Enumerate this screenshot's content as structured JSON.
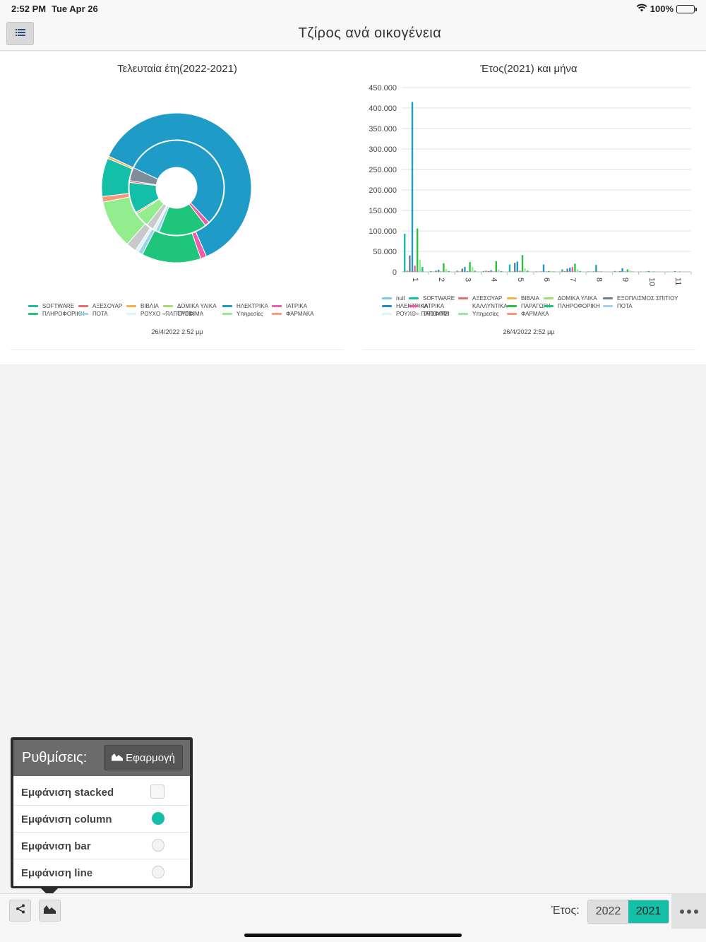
{
  "status": {
    "time": "2:52 PM",
    "date": "Tue Apr 26",
    "battery": "100%"
  },
  "nav": {
    "title": "Τζίρος ανά οικογένεια",
    "menu_icon": "list-icon"
  },
  "left_panel": {
    "title": "Τελευταία έτη(2022-2021)",
    "timestamp": "26/4/2022 2:52 μμ",
    "legend": [
      {
        "label": "SOFTWARE",
        "color": "#13bfa6"
      },
      {
        "label": "ΑΞΕΣΟΥΑΡ",
        "color": "#f06a6a"
      },
      {
        "label": "ΒΙΒΛΙΑ",
        "color": "#f7b04c"
      },
      {
        "label": "ΔΟΜΙΚΑ ΥΛΙΚΑ",
        "color": "#a5dc6e"
      },
      {
        "label": "ΗΛΕΚΤΡΙΚΑ",
        "color": "#1f9bc7"
      },
      {
        "label": "ΙΑΤΡΙΚΑ",
        "color": "#ef5da8"
      },
      {
        "label": "ΠΛΗΡΟΦΟΡΙΚΗ",
        "color": "#1ec57a"
      },
      {
        "label": "ΠΟΤΑ",
        "color": "#9fd3ea"
      },
      {
        "label": "ΡΟΥΧΟ - ΠΑΠΟΥΤΣΙ",
        "color": "#d9f5f3"
      },
      {
        "label": "ΤΡΟΦΙΜΑ",
        "color": "#c9c9c9"
      },
      {
        "label": "Υπηρεσίες",
        "color": "#93ec8e"
      },
      {
        "label": "ΦΑΡΜΑΚΑ",
        "color": "#f59a78"
      }
    ]
  },
  "right_panel": {
    "title": "Έτος(2021) και μήνα",
    "timestamp": "26/4/2022 2:52 μμ",
    "legend": [
      {
        "label": "null",
        "color": "#7cc9ee"
      },
      {
        "label": "SOFTWARE",
        "color": "#13bfa6"
      },
      {
        "label": "ΑΞΕΣΟΥΑΡ",
        "color": "#f06a6a"
      },
      {
        "label": "ΒΙΒΛΙΑ",
        "color": "#f7b04c"
      },
      {
        "label": "ΔΟΜΙΚΑ ΥΛΙΚΑ",
        "color": "#a5dc6e"
      },
      {
        "label": "ΕΞΟΠΛΙΣΜΟΣ ΣΠΙΤΙΟΥ",
        "color": "#6a7f96"
      },
      {
        "label": "ΗΛΕΚΤΡΙΚΑ",
        "color": "#1f8fc0"
      },
      {
        "label": "ΙΑΤΡΙΚΑ",
        "color": "#ef5da8"
      },
      {
        "label": "ΚΑΛΛΥΝΤΙΚΑ",
        "color": "#ffffff"
      },
      {
        "label": "ΠΑΡΑΓΩΓΗ",
        "color": "#2fbf3f"
      },
      {
        "label": "ΠΛΗΡΟΦΟΡΙΚΗ",
        "color": "#1ec57a"
      },
      {
        "label": "ΠΟΤΑ",
        "color": "#9fd3ea"
      },
      {
        "label": "ΡΟΥΧΟ - ΠΑΠΟΥΤΣΙ",
        "color": "#d9f5f3"
      },
      {
        "label": "ΤΡΟΦΙΜΑ",
        "color": "#c9c9c9"
      },
      {
        "label": "Υπηρεσίες",
        "color": "#93ec8e"
      },
      {
        "label": "ΦΑΡΜΑΚΑ",
        "color": "#f59a78"
      }
    ]
  },
  "chart_data": [
    {
      "type": "pie",
      "title": "Τελευταία έτη(2022-2021)",
      "note_rings": [
        "outer",
        "inner"
      ],
      "rings": [
        {
          "name": "outer",
          "slices": [
            {
              "label": "ΗΛΕΚΤΡΙΚΑ",
              "value": 61.5
            },
            {
              "label": "ΙΑΤΡΙΚΑ",
              "value": 1.3
            },
            {
              "label": "ΠΛΗΡΟΦΟΡΙΚΗ",
              "value": 12.8
            },
            {
              "label": "ΠΟΤΑ",
              "value": 1.0
            },
            {
              "label": "ΡΟΥΧΟ - ΠΑΠΟΥΤΣΙ",
              "value": 0.7
            },
            {
              "label": "ΤΡΟΦΙΜΑ",
              "value": 2.2
            },
            {
              "label": "Υπηρεσίες",
              "value": 10.5
            },
            {
              "label": "ΦΑΡΜΑΚΑ",
              "value": 1.2
            },
            {
              "label": "SOFTWARE",
              "value": 8.3
            },
            {
              "label": "ΒΙΒΛΙΑ",
              "value": 0.5
            }
          ]
        },
        {
          "name": "inner",
          "slices": [
            {
              "label": "ΗΛΕΚΤΡΙΚΑ",
              "value": 56.0
            },
            {
              "label": "ΙΑΤΡΙΚΑ",
              "value": 1.6
            },
            {
              "label": "ΠΛΗΡΟΦΟΡΙΚΗ",
              "value": 16.5
            },
            {
              "label": "ΠΟΤΑ",
              "value": 1.2
            },
            {
              "label": "ΡΟΥΧΟ - ΠΑΠΟΥΤΣΙ",
              "value": 1.0
            },
            {
              "label": "ΤΡΟΦΙΜΑ",
              "value": 2.5
            },
            {
              "label": "Υπηρεσίες",
              "value": 5.0
            },
            {
              "label": "ΦΑΡΜΑΚΑ",
              "value": 0.6
            },
            {
              "label": "SOFTWARE",
              "value": 10.5
            },
            {
              "label": "ΑΞΕΣΟΥΑΡ",
              "value": 0.6
            },
            {
              "label": "ΕΞΟΠΛΙΣΜΟΣ ΣΠΙΤΙΟΥ",
              "value": 4.5
            }
          ]
        }
      ]
    },
    {
      "type": "bar",
      "title": "Έτος(2021) και μήνα",
      "categories": [
        "1",
        "2",
        "3",
        "4",
        "5",
        "6",
        "7",
        "8",
        "9",
        "10",
        "11"
      ],
      "yticks": [
        "0",
        "50.000",
        "100.000",
        "150.000",
        "200.000",
        "250.000",
        "300.000",
        "350.000",
        "400.000",
        "450.000"
      ],
      "ylim": [
        0,
        450000
      ],
      "grid": true,
      "legend_position": "bottom",
      "series": [
        {
          "name": "SOFTWARE",
          "values": [
            93000,
            2000,
            3000,
            2000,
            18000,
            1000,
            6000,
            1000,
            2000,
            500,
            500
          ]
        },
        {
          "name": "ΑΞΕΣΟΥΑΡ",
          "values": [
            3000,
            500,
            1000,
            3000,
            1000,
            500,
            2000,
            500,
            500,
            0,
            0
          ]
        },
        {
          "name": "ΕΞΟΠΛΙΣΜΟΣ ΣΠΙΤΙΟΥ",
          "values": [
            40000,
            3000,
            8000,
            2000,
            22000,
            1000,
            8000,
            1000,
            2000,
            500,
            0
          ]
        },
        {
          "name": "ΗΛΕΚΤΡΙΚΑ",
          "values": [
            415000,
            5000,
            12000,
            4000,
            25000,
            18000,
            10000,
            17000,
            9000,
            2000,
            1500
          ]
        },
        {
          "name": "ΙΑΤΡΙΚΑ",
          "values": [
            15000,
            1000,
            2000,
            1000,
            3000,
            1000,
            12000,
            1000,
            1000,
            0,
            0
          ]
        },
        {
          "name": "ΠΑΡΑΓΩΓΗ",
          "values": [
            106000,
            21000,
            24000,
            26000,
            41000,
            2000,
            20000,
            1000,
            6000,
            1000,
            1000
          ]
        },
        {
          "name": "Υπηρεσίες",
          "values": [
            30000,
            7000,
            12000,
            5000,
            8000,
            2000,
            6000,
            1000,
            3000,
            500,
            500
          ]
        },
        {
          "name": "ΠΛΗΡΟΦΟΡΙΚΗ",
          "values": [
            12000,
            2000,
            3000,
            2000,
            3000,
            1000,
            2000,
            500,
            1000,
            0,
            0
          ]
        }
      ]
    }
  ],
  "settings": {
    "title": "Ρυθμίσεις:",
    "apply_label": "Εφαρμογή",
    "options": [
      {
        "label": "Εμφάνιση stacked",
        "control": "checkbox",
        "checked": false
      },
      {
        "label": "Εμφάνιση column",
        "control": "radio",
        "checked": true
      },
      {
        "label": "Εμφάνιση bar",
        "control": "radio",
        "checked": false
      },
      {
        "label": "Εμφάνιση line",
        "control": "radio",
        "checked": false
      }
    ]
  },
  "bottom": {
    "year_label": "Έτος:",
    "years": [
      "2022",
      "2021"
    ],
    "active_year": "2021",
    "accent": "#13bfa6"
  }
}
